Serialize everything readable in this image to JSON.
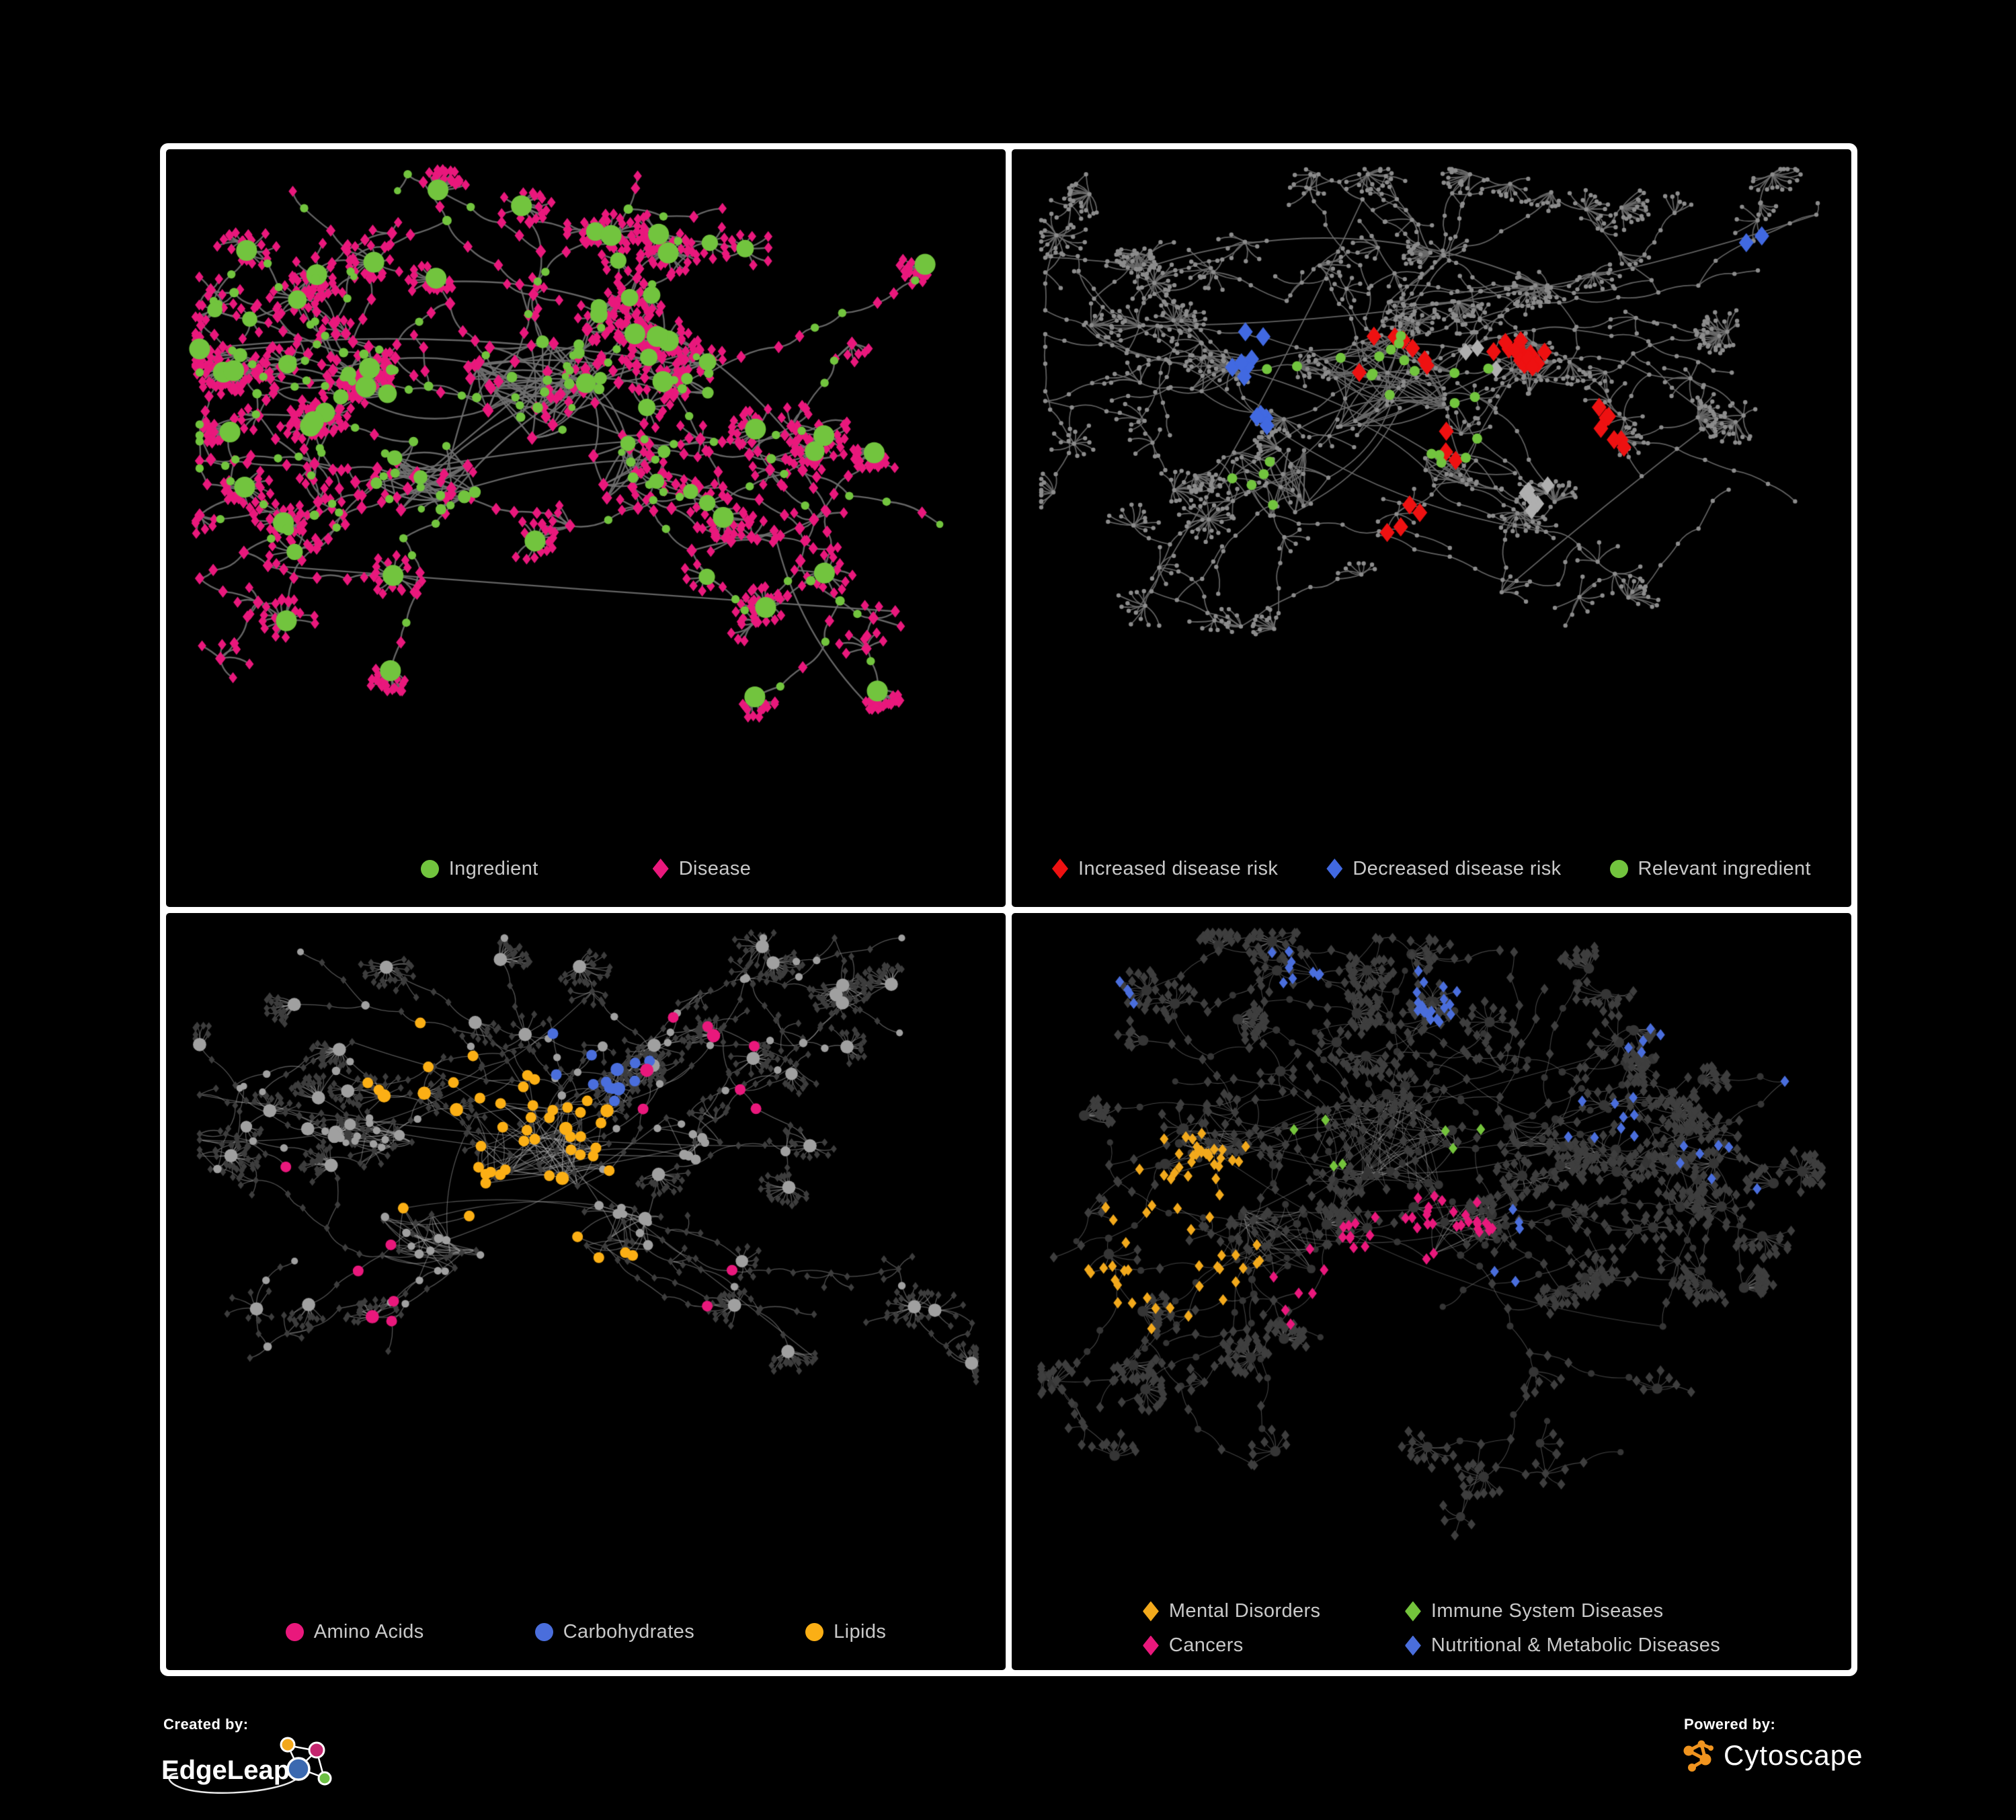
{
  "page": {
    "background": "#000000",
    "panel_border_color": "#FFFFFF",
    "panel_background": "#000000",
    "legend_text_color": "#C9C9C9"
  },
  "panels": [
    {
      "name": "ingredient-disease-network",
      "legend": [
        {
          "label": "Ingredient",
          "shape": "circle",
          "color": "#72C43E"
        },
        {
          "label": "Disease",
          "shape": "diamond",
          "color": "#E9187C"
        }
      ],
      "style": {
        "edge": "rgba(112,112,112,0.9)",
        "edge_width": 2.4,
        "ingredient": "#72C43E",
        "disease": "#E9187C"
      }
    },
    {
      "name": "disease-risk-network",
      "legend": [
        {
          "label": "Increased disease risk",
          "shape": "diamond",
          "color": "#EE1111"
        },
        {
          "label": "Decreased disease risk",
          "shape": "diamond",
          "color": "#4169E1"
        },
        {
          "label": "Relevant ingredient",
          "shape": "circle",
          "color": "#72C43E"
        }
      ],
      "style": {
        "edge": "rgba(106,106,106,0.9)",
        "edge_width": 1.8,
        "neutral": "#8C8C8C",
        "neutral_diamond": "#AFAFAF",
        "increased": "#EE1111",
        "decreased": "#4169E1",
        "relevant": "#72C43E"
      }
    },
    {
      "name": "nutrient-class-network",
      "legend": [
        {
          "label": "Amino Acids",
          "shape": "circle",
          "color": "#E9187C"
        },
        {
          "label": "Carbohydrates",
          "shape": "circle",
          "color": "#4A6EDC"
        },
        {
          "label": "Lipids",
          "shape": "circle",
          "color": "#FBAF15"
        }
      ],
      "style": {
        "edge": "rgba(168,168,168,0.5)",
        "edge_width": 1.3,
        "ingredient": "#A0A0A0",
        "disease": "#3D3D3D",
        "amino": "#E9187C",
        "carbo": "#4A6EDC",
        "lipid": "#FBAF15"
      }
    },
    {
      "name": "disease-class-network",
      "legend_columns": 2,
      "legend": [
        {
          "label": "Mental Disorders",
          "shape": "diamond",
          "color": "#F2A91C"
        },
        {
          "label": "Immune System Diseases",
          "shape": "diamond",
          "color": "#74C33C"
        },
        {
          "label": "Cancers",
          "shape": "diamond",
          "color": "#E9187C"
        },
        {
          "label": "Nutritional & Metabolic Diseases",
          "shape": "diamond",
          "color": "#4A6EDC"
        }
      ],
      "style": {
        "edge": "rgba(150,150,150,0.45)",
        "edge_width": 1.1,
        "ingredient": "#353535",
        "disease": "#3E3E3E",
        "mental": "#F2A91C",
        "immune": "#74C33C",
        "cancer": "#E9187C",
        "nutritional": "#4A6EDC"
      }
    }
  ],
  "footer": {
    "created_by_label": "Created by:",
    "created_by_name": "EdgeLeap",
    "powered_by_label": "Powered by:",
    "powered_by_name": "Cytoscape",
    "edgeleap_logo_colors": {
      "blue": "#3B69B0",
      "orange": "#F2A71B",
      "magenta": "#C4256E",
      "green": "#6CBF44"
    },
    "cytoscape_orange": "#F0941F"
  }
}
